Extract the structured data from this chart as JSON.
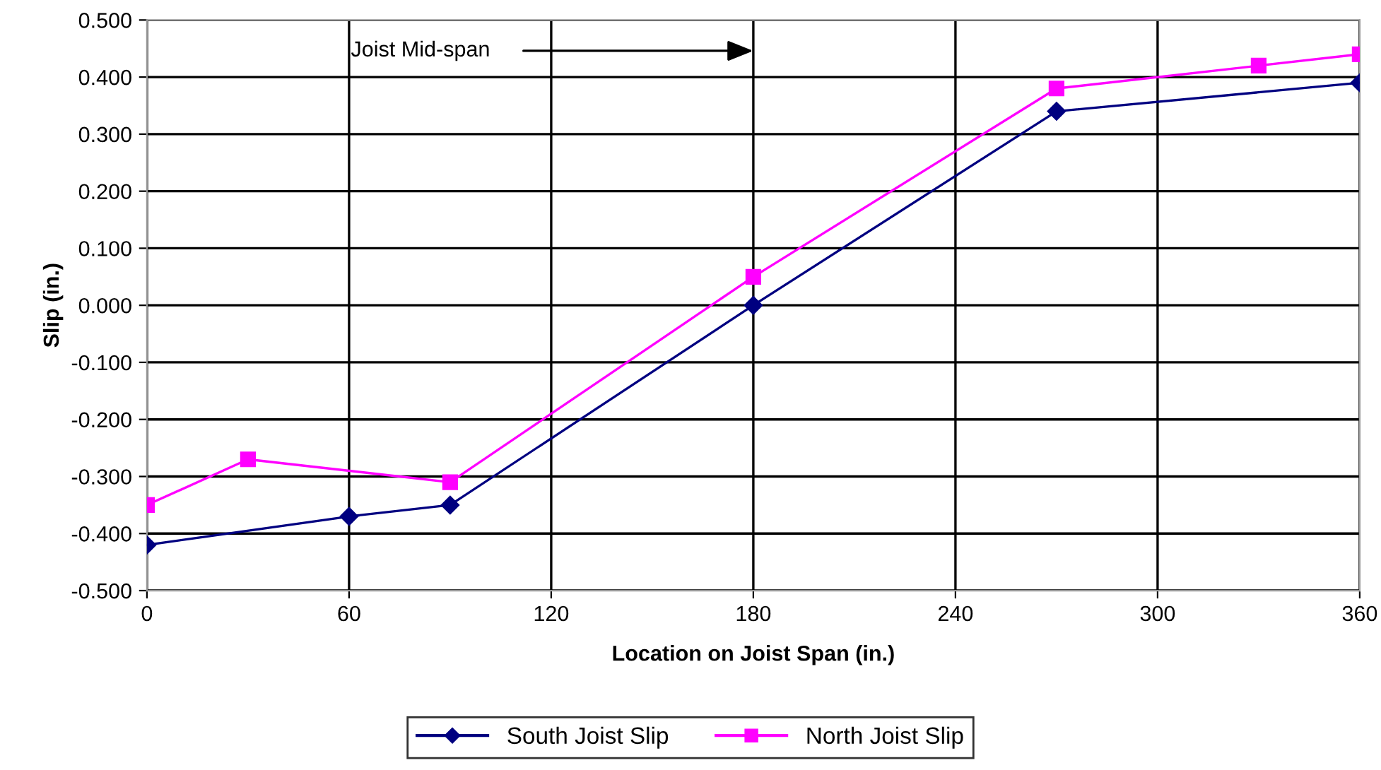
{
  "chart_data": {
    "type": "line",
    "xlabel": "Location on Joist Span (in.)",
    "ylabel": "Slip (in.)",
    "series": [
      {
        "name": "South Joist Slip",
        "color": "#000080",
        "marker": "diamond",
        "x": [
          0,
          60,
          90,
          180,
          270,
          360
        ],
        "values": [
          -0.42,
          -0.37,
          -0.35,
          0.0,
          0.34,
          0.39
        ]
      },
      {
        "name": "North Joist Slip",
        "color": "#ff00ff",
        "marker": "square",
        "x": [
          0,
          30,
          90,
          180,
          270,
          330,
          360
        ],
        "values": [
          -0.35,
          -0.27,
          -0.31,
          0.05,
          0.38,
          0.42,
          0.44
        ]
      }
    ],
    "xlim": [
      0,
      360
    ],
    "xticks": [
      0,
      60,
      120,
      180,
      240,
      300,
      360
    ],
    "ylim": [
      -0.5,
      0.5
    ],
    "yticks": [
      {
        "value": -0.5,
        "label": "-0.500"
      },
      {
        "value": -0.4,
        "label": "-0.400"
      },
      {
        "value": -0.3,
        "label": "-0.300"
      },
      {
        "value": -0.2,
        "label": "-0.200"
      },
      {
        "value": -0.1,
        "label": "-0.100"
      },
      {
        "value": 0,
        "label": "0.000"
      },
      {
        "value": 0.1,
        "label": "0.100"
      },
      {
        "value": 0.2,
        "label": "0.200"
      },
      {
        "value": 0.3,
        "label": "0.300"
      },
      {
        "value": 0.4,
        "label": "0.400"
      },
      {
        "value": 0.5,
        "label": "0.500"
      }
    ],
    "annotations": [
      "Joist Mid-span"
    ],
    "grid": true,
    "legend": "bottom",
    "line_style": "solid"
  }
}
